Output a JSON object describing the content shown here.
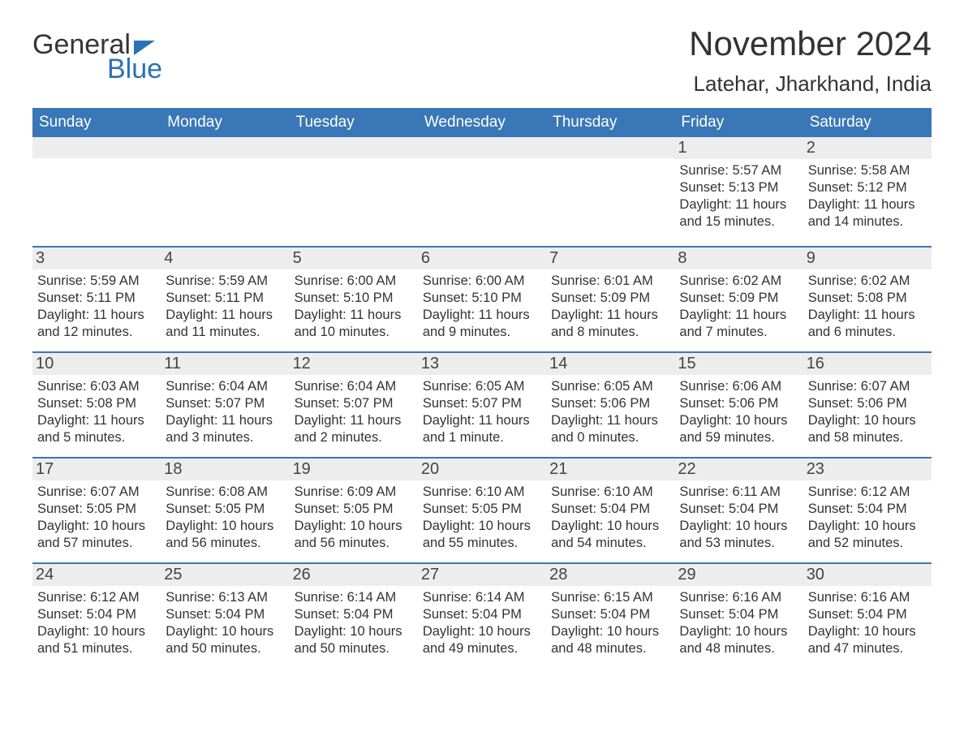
{
  "logo": {
    "word1": "General",
    "word2": "Blue"
  },
  "title": "November 2024",
  "location": "Latehar, Jharkhand, India",
  "colors": {
    "header_bg": "#3a77b6",
    "header_text": "#ffffff",
    "daynum_bg": "#ededed",
    "rule": "#3a77b6",
    "text": "#333333",
    "logo_blue": "#2a71b8"
  },
  "day_headers": [
    "Sunday",
    "Monday",
    "Tuesday",
    "Wednesday",
    "Thursday",
    "Friday",
    "Saturday"
  ],
  "weeks": [
    [
      null,
      null,
      null,
      null,
      null,
      {
        "n": "1",
        "sunrise": "5:57 AM",
        "sunset": "5:13 PM",
        "daylight": "11 hours and 15 minutes."
      },
      {
        "n": "2",
        "sunrise": "5:58 AM",
        "sunset": "5:12 PM",
        "daylight": "11 hours and 14 minutes."
      }
    ],
    [
      {
        "n": "3",
        "sunrise": "5:59 AM",
        "sunset": "5:11 PM",
        "daylight": "11 hours and 12 minutes."
      },
      {
        "n": "4",
        "sunrise": "5:59 AM",
        "sunset": "5:11 PM",
        "daylight": "11 hours and 11 minutes."
      },
      {
        "n": "5",
        "sunrise": "6:00 AM",
        "sunset": "5:10 PM",
        "daylight": "11 hours and 10 minutes."
      },
      {
        "n": "6",
        "sunrise": "6:00 AM",
        "sunset": "5:10 PM",
        "daylight": "11 hours and 9 minutes."
      },
      {
        "n": "7",
        "sunrise": "6:01 AM",
        "sunset": "5:09 PM",
        "daylight": "11 hours and 8 minutes."
      },
      {
        "n": "8",
        "sunrise": "6:02 AM",
        "sunset": "5:09 PM",
        "daylight": "11 hours and 7 minutes."
      },
      {
        "n": "9",
        "sunrise": "6:02 AM",
        "sunset": "5:08 PM",
        "daylight": "11 hours and 6 minutes."
      }
    ],
    [
      {
        "n": "10",
        "sunrise": "6:03 AM",
        "sunset": "5:08 PM",
        "daylight": "11 hours and 5 minutes."
      },
      {
        "n": "11",
        "sunrise": "6:04 AM",
        "sunset": "5:07 PM",
        "daylight": "11 hours and 3 minutes."
      },
      {
        "n": "12",
        "sunrise": "6:04 AM",
        "sunset": "5:07 PM",
        "daylight": "11 hours and 2 minutes."
      },
      {
        "n": "13",
        "sunrise": "6:05 AM",
        "sunset": "5:07 PM",
        "daylight": "11 hours and 1 minute."
      },
      {
        "n": "14",
        "sunrise": "6:05 AM",
        "sunset": "5:06 PM",
        "daylight": "11 hours and 0 minutes."
      },
      {
        "n": "15",
        "sunrise": "6:06 AM",
        "sunset": "5:06 PM",
        "daylight": "10 hours and 59 minutes."
      },
      {
        "n": "16",
        "sunrise": "6:07 AM",
        "sunset": "5:06 PM",
        "daylight": "10 hours and 58 minutes."
      }
    ],
    [
      {
        "n": "17",
        "sunrise": "6:07 AM",
        "sunset": "5:05 PM",
        "daylight": "10 hours and 57 minutes."
      },
      {
        "n": "18",
        "sunrise": "6:08 AM",
        "sunset": "5:05 PM",
        "daylight": "10 hours and 56 minutes."
      },
      {
        "n": "19",
        "sunrise": "6:09 AM",
        "sunset": "5:05 PM",
        "daylight": "10 hours and 56 minutes."
      },
      {
        "n": "20",
        "sunrise": "6:10 AM",
        "sunset": "5:05 PM",
        "daylight": "10 hours and 55 minutes."
      },
      {
        "n": "21",
        "sunrise": "6:10 AM",
        "sunset": "5:04 PM",
        "daylight": "10 hours and 54 minutes."
      },
      {
        "n": "22",
        "sunrise": "6:11 AM",
        "sunset": "5:04 PM",
        "daylight": "10 hours and 53 minutes."
      },
      {
        "n": "23",
        "sunrise": "6:12 AM",
        "sunset": "5:04 PM",
        "daylight": "10 hours and 52 minutes."
      }
    ],
    [
      {
        "n": "24",
        "sunrise": "6:12 AM",
        "sunset": "5:04 PM",
        "daylight": "10 hours and 51 minutes."
      },
      {
        "n": "25",
        "sunrise": "6:13 AM",
        "sunset": "5:04 PM",
        "daylight": "10 hours and 50 minutes."
      },
      {
        "n": "26",
        "sunrise": "6:14 AM",
        "sunset": "5:04 PM",
        "daylight": "10 hours and 50 minutes."
      },
      {
        "n": "27",
        "sunrise": "6:14 AM",
        "sunset": "5:04 PM",
        "daylight": "10 hours and 49 minutes."
      },
      {
        "n": "28",
        "sunrise": "6:15 AM",
        "sunset": "5:04 PM",
        "daylight": "10 hours and 48 minutes."
      },
      {
        "n": "29",
        "sunrise": "6:16 AM",
        "sunset": "5:04 PM",
        "daylight": "10 hours and 48 minutes."
      },
      {
        "n": "30",
        "sunrise": "6:16 AM",
        "sunset": "5:04 PM",
        "daylight": "10 hours and 47 minutes."
      }
    ]
  ],
  "labels": {
    "sunrise": "Sunrise: ",
    "sunset": "Sunset: ",
    "daylight": "Daylight: "
  }
}
